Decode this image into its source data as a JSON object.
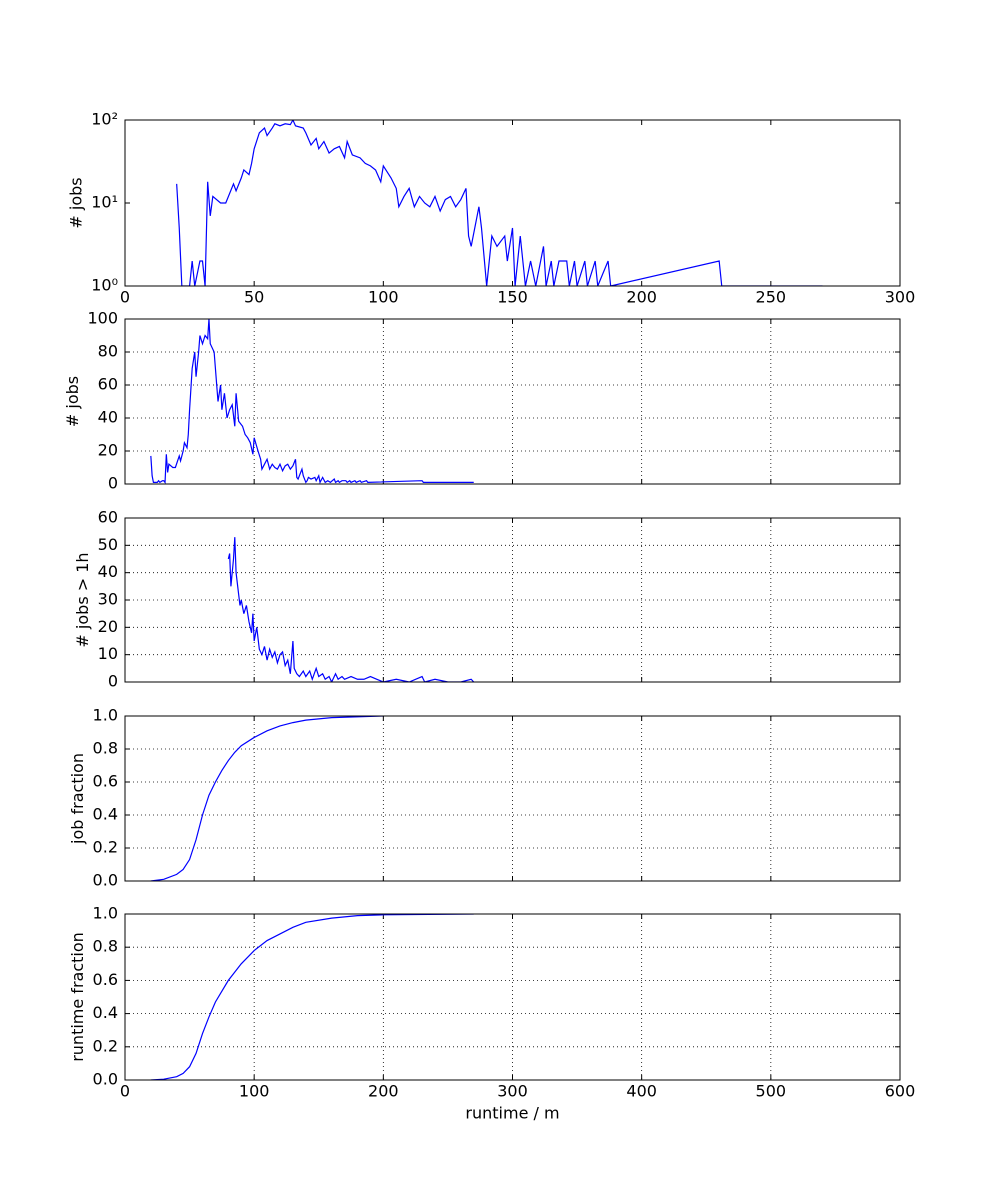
{
  "chart_data": [
    {
      "type": "line",
      "ylabel": "# jobs",
      "yscale": "log",
      "grid": false,
      "x": [
        20,
        21,
        22,
        25,
        26,
        27,
        29,
        30,
        31,
        32,
        33,
        34,
        37,
        39,
        42,
        43,
        45,
        46,
        48,
        49,
        50,
        52,
        54,
        55,
        57,
        58,
        60,
        62,
        64,
        65,
        66,
        69,
        70,
        72,
        74,
        75,
        77,
        79,
        81,
        83,
        85,
        86,
        88,
        91,
        93,
        95,
        97,
        99,
        100,
        103,
        105,
        106,
        108,
        110,
        112,
        114,
        116,
        118,
        120,
        122,
        124,
        126,
        128,
        130,
        132,
        133,
        134,
        137,
        138,
        140,
        141,
        142,
        144,
        147,
        148,
        150,
        151,
        153,
        155,
        157,
        159,
        162,
        163,
        165,
        166,
        168,
        169,
        171,
        172,
        174,
        175,
        178,
        179,
        182,
        183,
        187,
        188,
        230,
        231,
        270
      ],
      "series": [
        {
          "color": "#0000ff",
          "values": [
            17,
            5,
            1,
            1,
            2,
            1,
            2,
            2,
            1,
            18,
            7,
            12,
            10,
            10,
            17,
            14,
            20,
            25,
            22,
            30,
            45,
            70,
            80,
            65,
            80,
            90,
            85,
            90,
            88,
            100,
            85,
            80,
            70,
            50,
            60,
            45,
            55,
            40,
            45,
            48,
            35,
            55,
            38,
            35,
            30,
            28,
            25,
            18,
            28,
            20,
            15,
            9,
            12,
            15,
            9,
            12,
            10,
            9,
            12,
            8,
            11,
            12,
            9,
            11,
            15,
            4,
            3,
            9,
            5,
            1,
            2,
            4,
            3,
            4,
            2,
            5,
            1,
            4,
            1,
            2,
            1,
            3,
            1,
            2,
            1,
            2,
            2,
            2,
            1,
            2,
            1,
            2,
            1,
            2,
            1,
            2,
            1,
            2,
            1,
            1
          ]
        }
      ],
      "xlim": [
        0,
        300
      ],
      "xticks": [
        0,
        50,
        100,
        150,
        200,
        250,
        300
      ],
      "ylim": [
        1,
        100
      ],
      "yticks": [
        {
          "value": 1,
          "label": "10⁰"
        },
        {
          "value": 10,
          "label": "10¹"
        },
        {
          "value": 100,
          "label": "10²"
        }
      ]
    },
    {
      "type": "line",
      "ylabel": "# jobs",
      "grid": true,
      "x": [
        20,
        21,
        22,
        25,
        26,
        27,
        29,
        30,
        31,
        32,
        33,
        34,
        37,
        39,
        42,
        43,
        45,
        46,
        48,
        49,
        50,
        52,
        54,
        55,
        57,
        58,
        60,
        62,
        64,
        65,
        66,
        69,
        70,
        72,
        74,
        75,
        77,
        79,
        81,
        83,
        85,
        86,
        88,
        91,
        93,
        95,
        97,
        99,
        100,
        103,
        105,
        106,
        108,
        110,
        112,
        114,
        116,
        118,
        120,
        122,
        124,
        126,
        128,
        130,
        132,
        133,
        134,
        137,
        138,
        140,
        141,
        142,
        144,
        147,
        148,
        150,
        151,
        153,
        155,
        157,
        159,
        162,
        163,
        165,
        166,
        168,
        169,
        171,
        172,
        174,
        175,
        178,
        179,
        182,
        183,
        187,
        188,
        230,
        231,
        270
      ],
      "series": [
        {
          "color": "#0000ff",
          "values": [
            17,
            5,
            1,
            1,
            2,
            1,
            2,
            2,
            1,
            18,
            7,
            12,
            10,
            10,
            17,
            14,
            20,
            25,
            22,
            30,
            45,
            70,
            80,
            65,
            80,
            90,
            85,
            90,
            88,
            100,
            85,
            80,
            70,
            50,
            60,
            45,
            55,
            40,
            45,
            48,
            35,
            55,
            38,
            35,
            30,
            28,
            25,
            18,
            28,
            20,
            15,
            9,
            12,
            15,
            9,
            12,
            10,
            9,
            12,
            8,
            11,
            12,
            9,
            11,
            15,
            4,
            3,
            9,
            5,
            1,
            2,
            4,
            3,
            4,
            2,
            5,
            1,
            4,
            1,
            2,
            1,
            3,
            1,
            2,
            1,
            2,
            2,
            2,
            1,
            2,
            1,
            2,
            1,
            2,
            1,
            2,
            1,
            2,
            1,
            1
          ]
        }
      ],
      "ylim": [
        0,
        100
      ],
      "yticks": [
        0,
        20,
        40,
        60,
        80,
        100
      ]
    },
    {
      "type": "line",
      "ylabel": "# jobs > 1h",
      "grid": true,
      "x": [
        80,
        81,
        82,
        84,
        85,
        86,
        88,
        89,
        90,
        92,
        94,
        96,
        98,
        99,
        100,
        102,
        104,
        106,
        108,
        110,
        112,
        114,
        116,
        118,
        120,
        122,
        124,
        126,
        128,
        130,
        131,
        133,
        135,
        138,
        140,
        143,
        145,
        148,
        150,
        153,
        155,
        158,
        160,
        163,
        165,
        168,
        170,
        175,
        180,
        185,
        190,
        195,
        200,
        210,
        220,
        230,
        232,
        240,
        250,
        260,
        268,
        270
      ],
      "series": [
        {
          "color": "#0000ff",
          "values": [
            45,
            47,
            35,
            45,
            53,
            40,
            32,
            28,
            30,
            25,
            28,
            22,
            18,
            25,
            15,
            20,
            12,
            10,
            13,
            8,
            12,
            9,
            11,
            7,
            10,
            11,
            6,
            8,
            3,
            15,
            5,
            3,
            2,
            4,
            2,
            4,
            1,
            5,
            2,
            3,
            1,
            2,
            0,
            3,
            1,
            2,
            1,
            2,
            1,
            1,
            2,
            1,
            0,
            1,
            0,
            2,
            0,
            1,
            0,
            0,
            1,
            0
          ]
        }
      ],
      "ylim": [
        0,
        60
      ],
      "yticks": [
        0,
        10,
        20,
        30,
        40,
        50,
        60
      ]
    },
    {
      "type": "line",
      "ylabel": "job fraction",
      "grid": true,
      "x": [
        20,
        30,
        40,
        45,
        50,
        55,
        60,
        65,
        70,
        75,
        80,
        85,
        90,
        100,
        110,
        120,
        130,
        140,
        160,
        200
      ],
      "series": [
        {
          "color": "#0000ff",
          "values": [
            0,
            0.01,
            0.04,
            0.07,
            0.13,
            0.25,
            0.4,
            0.52,
            0.6,
            0.67,
            0.73,
            0.78,
            0.82,
            0.87,
            0.91,
            0.94,
            0.96,
            0.975,
            0.99,
            1.0
          ]
        }
      ],
      "ylim": [
        0,
        1
      ],
      "yticks": [
        {
          "value": 0,
          "label": "0.0"
        },
        0.2,
        0.4,
        0.6,
        0.8,
        {
          "value": 1,
          "label": "1.0"
        }
      ]
    },
    {
      "type": "line",
      "ylabel": "runtime fraction",
      "xlabel": "runtime / m",
      "grid": true,
      "x": [
        20,
        30,
        40,
        45,
        50,
        55,
        60,
        65,
        70,
        80,
        90,
        100,
        110,
        120,
        130,
        140,
        160,
        180,
        200,
        270
      ],
      "series": [
        {
          "color": "#0000ff",
          "values": [
            0,
            0.005,
            0.02,
            0.04,
            0.08,
            0.16,
            0.28,
            0.38,
            0.47,
            0.6,
            0.7,
            0.78,
            0.84,
            0.88,
            0.92,
            0.95,
            0.975,
            0.99,
            0.995,
            1.0
          ]
        }
      ],
      "xlim": [
        0,
        600
      ],
      "xticks": [
        0,
        100,
        200,
        300,
        400,
        500,
        600
      ],
      "ylim": [
        0,
        1
      ],
      "yticks": [
        {
          "value": 0,
          "label": "0.0"
        },
        0.2,
        0.4,
        0.6,
        0.8,
        {
          "value": 1,
          "label": "1.0"
        }
      ]
    }
  ]
}
